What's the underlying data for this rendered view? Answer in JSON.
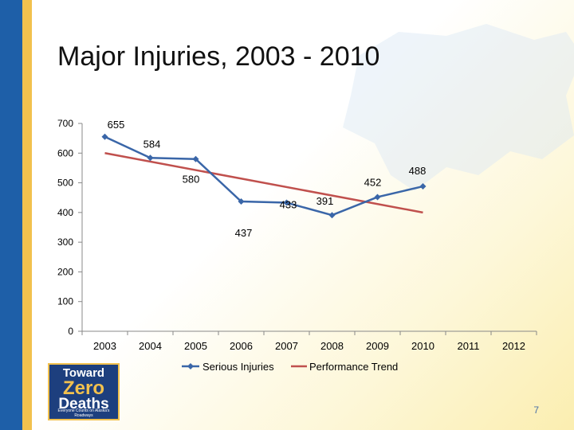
{
  "slide": {
    "title": "Major Injuries, 2003 - 2010",
    "page_number": "7",
    "logo": {
      "line1": "Toward",
      "line2": "Zero",
      "line3": "Deaths",
      "tagline": "Everyone Counts on Alaska's Roadways"
    }
  },
  "chart_data": {
    "type": "line",
    "title": "",
    "xlabel": "",
    "ylabel": "",
    "categories": [
      "2003",
      "2004",
      "2005",
      "2006",
      "2007",
      "2008",
      "2009",
      "2010",
      "2011",
      "2012"
    ],
    "ylim": [
      0,
      700
    ],
    "yticks": [
      0,
      100,
      200,
      300,
      400,
      500,
      600,
      700
    ],
    "grid": false,
    "legend_position": "bottom",
    "series": [
      {
        "name": "Serious Injuries",
        "color": "#3a66a8",
        "marker": "diamond",
        "x": [
          "2003",
          "2004",
          "2005",
          "2006",
          "2007",
          "2008",
          "2009",
          "2010"
        ],
        "values": [
          655,
          584,
          580,
          437,
          433,
          391,
          452,
          488
        ],
        "labels": [
          "655",
          "584",
          "580",
          "437",
          "433",
          "391",
          "452",
          "488"
        ]
      },
      {
        "name": "Performance Trend",
        "color": "#c0504d",
        "marker": "none",
        "x": [
          "2003",
          "2010"
        ],
        "values": [
          600,
          400
        ]
      }
    ]
  }
}
